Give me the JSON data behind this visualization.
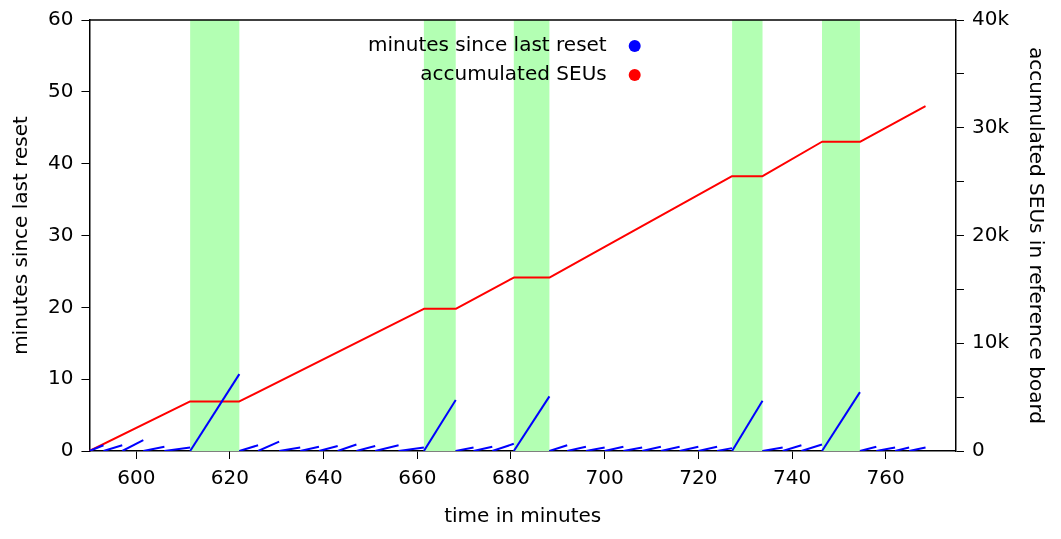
{
  "chart_data": {
    "type": "line",
    "xlabel": "time in minutes",
    "ylabel": "minutes since last reset",
    "y2label": "accumulated SEUs in reference board",
    "xlim": [
      590,
      775
    ],
    "xticks": [
      600,
      620,
      640,
      660,
      680,
      700,
      720,
      740,
      760
    ],
    "ylim": [
      0,
      60
    ],
    "yticks": [
      0,
      10,
      20,
      30,
      40,
      50,
      60
    ],
    "y2lim": [
      0,
      40000
    ],
    "y2ticks": [
      {
        "value": 0,
        "label": "0"
      },
      {
        "value": 5000,
        "label": null
      },
      {
        "value": 10000,
        "label": "10k"
      },
      {
        "value": 15000,
        "label": null
      },
      {
        "value": 20000,
        "label": "20k"
      },
      {
        "value": 25000,
        "label": null
      },
      {
        "value": 30000,
        "label": "30k"
      },
      {
        "value": 35000,
        "label": null
      },
      {
        "value": 40000,
        "label": "40k"
      }
    ],
    "grid": false,
    "legend": "top right",
    "line_style": "solid",
    "bands": [
      {
        "axis": "x",
        "from": 611.5,
        "to": 622,
        "color": "#b3ffb3"
      },
      {
        "axis": "x",
        "from": 661.4,
        "to": 668.2,
        "color": "#b3ffb3"
      },
      {
        "axis": "x",
        "from": 680.6,
        "to": 688.2,
        "color": "#b3ffb3"
      },
      {
        "axis": "x",
        "from": 727.2,
        "to": 733.7,
        "color": "#b3ffb3"
      },
      {
        "axis": "x",
        "from": 746.4,
        "to": 754.5,
        "color": "#b3ffb3"
      }
    ],
    "series": [
      {
        "name": "minutes since last reset",
        "color": "#0000ff",
        "x": [
          590,
          593,
          593,
          597,
          597,
          601.5,
          601.5,
          606,
          606,
          611.5,
          611.5,
          622,
          622,
          626,
          626,
          630.5,
          630.5,
          635,
          635,
          639,
          639,
          643,
          643,
          647,
          647,
          651,
          651,
          656,
          656,
          661.4,
          661.4,
          668.2,
          668.2,
          672,
          672,
          676,
          676,
          680.6,
          680.6,
          688.2,
          688.2,
          692,
          692,
          696,
          696,
          700,
          700,
          704,
          704,
          708,
          708,
          712,
          712,
          716,
          716,
          720,
          720,
          724,
          724,
          727.2,
          727.2,
          733.7,
          733.7,
          738,
          738,
          742,
          742,
          746.4,
          746.4,
          754.5,
          754.5,
          758,
          758,
          762,
          762,
          765,
          765,
          768.5
        ],
        "values": [
          0,
          0.8,
          0,
          0.8,
          0,
          1.5,
          0,
          0.6,
          0,
          0.5,
          0,
          10.7,
          0,
          0.8,
          0,
          1.3,
          0,
          0.5,
          0,
          0.6,
          0,
          0.7,
          0,
          0.9,
          0,
          0.7,
          0,
          0.8,
          0,
          0.5,
          0,
          7.1,
          0,
          0.5,
          0,
          0.6,
          0,
          1,
          0,
          7.6,
          0,
          0.8,
          0,
          0.6,
          0,
          0.5,
          0,
          0.6,
          0,
          0.5,
          0,
          0.6,
          0,
          0.6,
          0,
          0.6,
          0,
          0.6,
          0,
          0.4,
          0,
          7,
          0,
          0.5,
          0,
          0.8,
          0,
          0.9,
          0,
          8.2,
          0,
          0.6,
          0,
          0.5,
          0,
          0.5,
          0,
          0.5
        ]
      },
      {
        "name": "accumulated SEUs",
        "color": "#ff0000",
        "axis": "y2",
        "x": [
          590,
          611.5,
          622,
          661.4,
          668.2,
          680.6,
          688.2,
          727.2,
          733.7,
          746.4,
          754.5,
          768.5
        ],
        "values": [
          0,
          4600,
          4600,
          13200,
          13200,
          16100,
          16100,
          25500,
          25500,
          28700,
          28700,
          32000
        ]
      }
    ]
  }
}
